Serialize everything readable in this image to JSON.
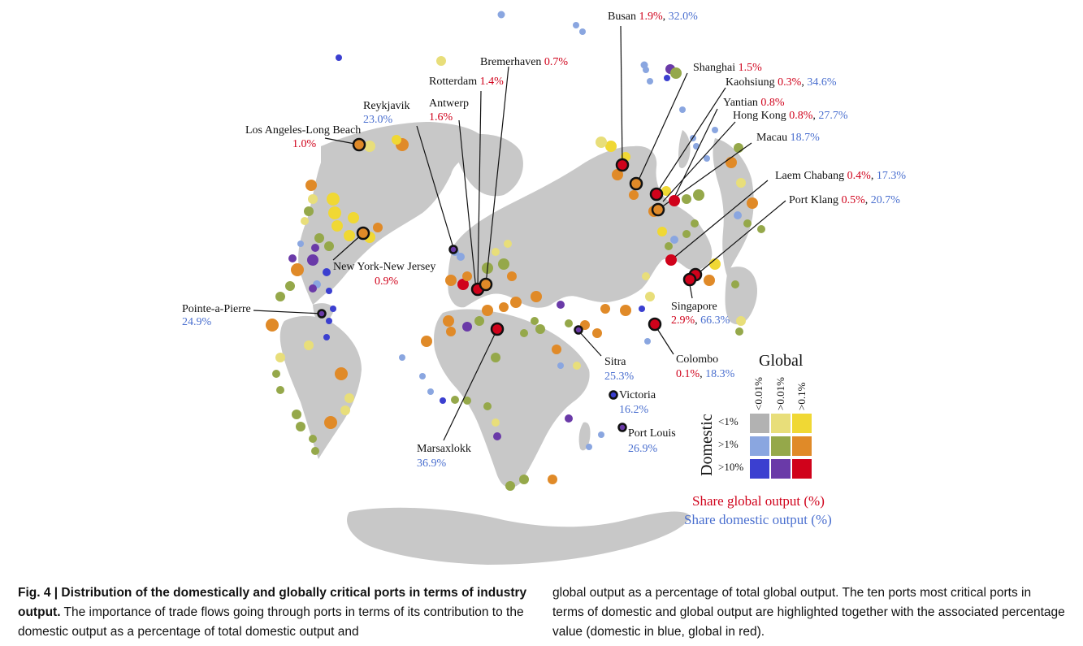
{
  "ports": [
    {
      "name": "Busan",
      "global": "1.9%",
      "domestic": "32.0%"
    },
    {
      "name": "Bremerhaven",
      "global": "0.7%",
      "domestic": ""
    },
    {
      "name": "Shanghai",
      "global": "1.5%",
      "domestic": ""
    },
    {
      "name": "Rotterdam",
      "global": "1.4%",
      "domestic": ""
    },
    {
      "name": "Kaohsiung",
      "global": "0.3%",
      "domestic": "34.6%"
    },
    {
      "name": "Reykjavik",
      "global": "",
      "domestic": "23.0%"
    },
    {
      "name": "Antwerp",
      "global": "1.6%",
      "domestic": ""
    },
    {
      "name": "Yantian",
      "global": "0.8%",
      "domestic": ""
    },
    {
      "name": "Hong Kong",
      "global": "0.8%",
      "domestic": "27.7%"
    },
    {
      "name": "Los Angeles-Long Beach",
      "global": "1.0%",
      "domestic": ""
    },
    {
      "name": "Macau",
      "global": "",
      "domestic": "18.7%"
    },
    {
      "name": "Laem Chabang",
      "global": "0.4%",
      "domestic": "17.3%"
    },
    {
      "name": "Port Klang",
      "global": "0.5%",
      "domestic": "20.7%"
    },
    {
      "name": "New York-New Jersey",
      "global": "0.9%",
      "domestic": ""
    },
    {
      "name": "Pointe-a-Pierre",
      "global": "",
      "domestic": "24.9%"
    },
    {
      "name": "Singapore",
      "global": "2.9%",
      "domestic": "66.3%"
    },
    {
      "name": "Sitra",
      "global": "",
      "domestic": "25.3%"
    },
    {
      "name": "Colombo",
      "global": "0.1%",
      "domestic": "18.3%"
    },
    {
      "name": "Victoria",
      "global": "",
      "domestic": "16.2%"
    },
    {
      "name": "Port Louis",
      "global": "",
      "domestic": "26.9%"
    },
    {
      "name": "Marsaxlokk",
      "global": "",
      "domestic": "36.9%"
    }
  ],
  "legend": {
    "global_title": "Global",
    "domestic_title": "Domestic",
    "global_cols": [
      "<0.01%",
      ">0.01%",
      ">0.1%"
    ],
    "domestic_rows": [
      "<1%",
      ">1%",
      ">10%"
    ],
    "colors": [
      [
        "#b2b2b2",
        "#e8de7a",
        "#f0d834"
      ],
      [
        "#8aa6e0",
        "#95a84a",
        "#e08a28"
      ],
      [
        "#3b3fd0",
        "#6a3aa8",
        "#d0021b"
      ]
    ],
    "share_global": "Share global output (%)",
    "share_domestic": "Share domestic output (%)"
  },
  "caption": {
    "fig": "Fig. 4 | Distribution of the domestically and globally critical ports in terms of industry output.",
    "text1": "The importance of trade flows going through ports in terms of its contribution to the domestic output as a percentage of total domestic output and",
    "text2": "global output as a percentage of total global output. The ten ports most critical ports in terms of domestic and global output are highlighted together with the associated percentage value (domestic in blue, global in red)."
  }
}
